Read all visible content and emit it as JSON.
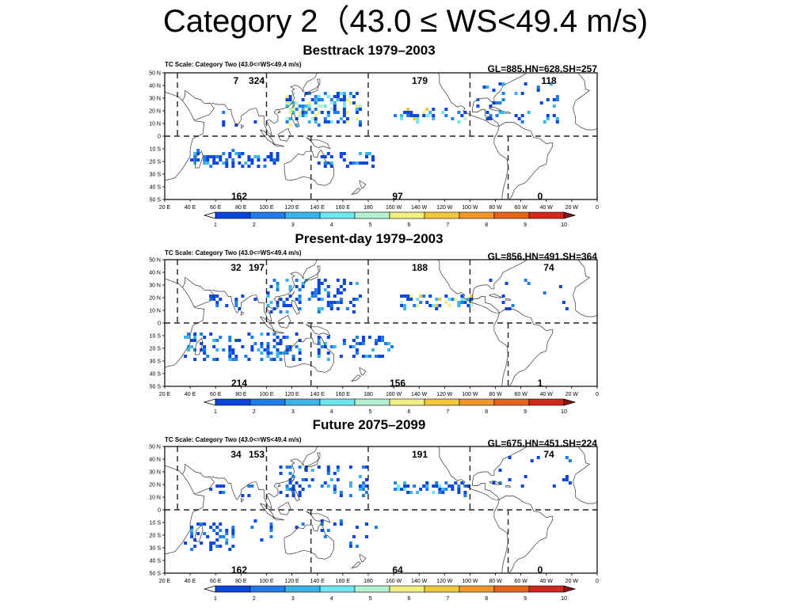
{
  "slide": {
    "title": "Category 2（43.0 ≤ WS<49.4 m/s)"
  },
  "colorbar": {
    "ticks": [
      "1",
      "2",
      "3",
      "4",
      "5",
      "6",
      "7",
      "8",
      "9",
      "10"
    ],
    "colors": [
      "#0a45dc",
      "#1e7de6",
      "#3cb4ea",
      "#6ee6f0",
      "#b4f0d2",
      "#f0f082",
      "#f0c83c",
      "#f0962a",
      "#e6641e",
      "#d2281e"
    ],
    "over_color": "#8c1414",
    "under_color": "#ffffff"
  },
  "axes": {
    "lat_labels": [
      "50 N",
      "40 N",
      "30 N",
      "20 N",
      "10 N",
      "0",
      "10 S",
      "20 S",
      "30 S",
      "40 S",
      "50 S"
    ],
    "lon_labels": [
      "20 E",
      "40 E",
      "60 E",
      "80 E",
      "100 E",
      "120 E",
      "140 E",
      "160 E",
      "180",
      "160 W",
      "140 W",
      "120 W",
      "100 W",
      "80 W",
      "60 W",
      "40 W",
      "20 W",
      "0"
    ]
  },
  "panels": [
    {
      "title": "Besttrack 1979–2003",
      "scale_label": "TC Scale: Category Two (43.0<=WS<49.4 m/s)",
      "stats": "GL=885,HN=628,SH=257",
      "counts": {
        "NIO": "7",
        "WNP": "324",
        "ENP": "179",
        "NAT": "118",
        "SIO": "162",
        "SP": "97",
        "SAT": "0"
      },
      "clusters": [
        {
          "lon": [
            115,
            175
          ],
          "lat": [
            8,
            35
          ],
          "n": 150,
          "peak": 6,
          "seed": 11
        },
        {
          "lon": [
            200,
            258
          ],
          "lat": [
            12,
            21
          ],
          "n": 35,
          "peak": 7,
          "seed": 12
        },
        {
          "lon": [
            265,
            330
          ],
          "lat": [
            12,
            42
          ],
          "n": 45,
          "peak": 3,
          "seed": 13
        },
        {
          "lon": [
            40,
            115
          ],
          "lat": [
            -25,
            -12
          ],
          "n": 75,
          "peak": 3,
          "seed": 14
        },
        {
          "lon": [
            140,
            185
          ],
          "lat": [
            -25,
            -12
          ],
          "n": 30,
          "peak": 3,
          "seed": 15
        },
        {
          "lon": [
            58,
            92
          ],
          "lat": [
            8,
            22
          ],
          "n": 6,
          "peak": 2,
          "seed": 16
        }
      ]
    },
    {
      "title": "Present-day 1979–2003",
      "scale_label": "TC Scale: Category Two (43.0<=WS<49.4 m/s)",
      "stats": "GL=856,HN=491,SH=364",
      "counts": {
        "NIO": "32",
        "WNP": "197",
        "ENP": "188",
        "NAT": "74",
        "SIO": "214",
        "SP": "156",
        "SAT": "1"
      },
      "clusters": [
        {
          "lon": [
            100,
            175
          ],
          "lat": [
            8,
            35
          ],
          "n": 110,
          "peak": 3,
          "seed": 21
        },
        {
          "lon": [
            205,
            265
          ],
          "lat": [
            12,
            22
          ],
          "n": 55,
          "peak": 7,
          "seed": 22
        },
        {
          "lon": [
            270,
            340
          ],
          "lat": [
            10,
            40
          ],
          "n": 14,
          "peak": 2,
          "seed": 23
        },
        {
          "lon": [
            35,
            130
          ],
          "lat": [
            -30,
            -8
          ],
          "n": 110,
          "peak": 3,
          "seed": 24
        },
        {
          "lon": [
            140,
            200
          ],
          "lat": [
            -28,
            -10
          ],
          "n": 60,
          "peak": 3,
          "seed": 25
        },
        {
          "lon": [
            55,
            95
          ],
          "lat": [
            10,
            25
          ],
          "n": 18,
          "peak": 2,
          "seed": 26
        }
      ]
    },
    {
      "title": "Future 2075–2099",
      "scale_label": "TC Scale: Category Two (43.0<=WS<49.4 m/s)",
      "stats": "GL=675,HN=451,SH=224",
      "counts": {
        "NIO": "34",
        "WNP": "153",
        "ENP": "191",
        "NAT": "74",
        "SIO": "162",
        "SP": "64",
        "SAT": "0"
      },
      "clusters": [
        {
          "lon": [
            110,
            180
          ],
          "lat": [
            10,
            35
          ],
          "n": 70,
          "peak": 3,
          "seed": 31
        },
        {
          "lon": [
            200,
            260
          ],
          "lat": [
            12,
            22
          ],
          "n": 55,
          "peak": 4,
          "seed": 32
        },
        {
          "lon": [
            275,
            345
          ],
          "lat": [
            15,
            45
          ],
          "n": 16,
          "peak": 2,
          "seed": 33
        },
        {
          "lon": [
            35,
            75
          ],
          "lat": [
            -32,
            -10
          ],
          "n": 45,
          "peak": 3,
          "seed": 34
        },
        {
          "lon": [
            75,
            190
          ],
          "lat": [
            -30,
            -8
          ],
          "n": 25,
          "peak": 2,
          "seed": 35
        },
        {
          "lon": [
            55,
            95
          ],
          "lat": [
            10,
            25
          ],
          "n": 10,
          "peak": 2,
          "seed": 36
        }
      ]
    }
  ]
}
